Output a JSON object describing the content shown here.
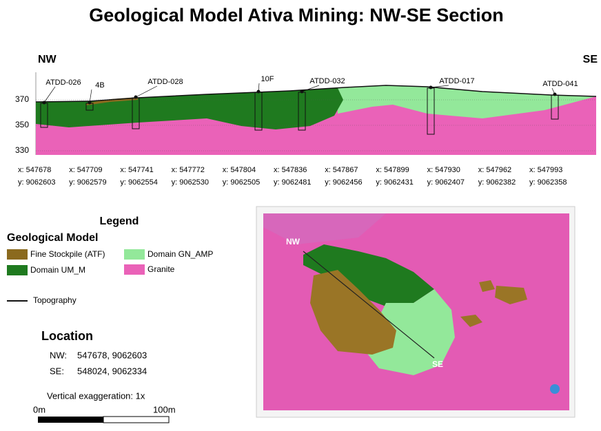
{
  "title": "Geological Model  Ativa  Mining: NW-SE Section",
  "section": {
    "left_label": "NW",
    "right_label": "SE",
    "elevation_ticks": [
      370,
      350,
      330
    ],
    "drill_holes": [
      "ATDD-026",
      "4B",
      "ATDD-028",
      "10F",
      "ATDD-032",
      "ATDD-017",
      "ATDD-041"
    ],
    "coordinates": [
      {
        "x": "x: 547678",
        "y": "y: 9062603"
      },
      {
        "x": "x: 547709",
        "y": "y: 9062579"
      },
      {
        "x": "x: 547741",
        "y": "y: 9062554"
      },
      {
        "x": "x: 547772",
        "y": "y: 9062530"
      },
      {
        "x": "x: 547804",
        "y": "y: 9062505"
      },
      {
        "x": "x: 547836",
        "y": "y: 9062481"
      },
      {
        "x": "x: 547867",
        "y": "y: 9062456"
      },
      {
        "x": "x: 547899",
        "y": "y: 9062431"
      },
      {
        "x": "x: 547930",
        "y": "y: 9062407"
      },
      {
        "x": "x: 547962",
        "y": "y: 9062382"
      },
      {
        "x": "x: 547993",
        "y": "y: 9062358"
      }
    ]
  },
  "legend": {
    "title": "Legend",
    "subtitle": "Geological Model",
    "items": [
      {
        "label": "Fine Stockpile (ATF)",
        "color": "#8b6a1e"
      },
      {
        "label": "Domain UM_M",
        "color": "#1f7a1f"
      },
      {
        "label": "Domain GN_AMP",
        "color": "#93e89a"
      },
      {
        "label": "Granite",
        "color": "#ea62b8"
      }
    ],
    "line_item": "Topography"
  },
  "location": {
    "title": "Location",
    "rows": [
      {
        "label": "NW:",
        "value": "547678, 9062603"
      },
      {
        "label": "SE:",
        "value": "548024, 9062334"
      }
    ]
  },
  "vertical_exaggeration": "Vertical exaggeration: 1x",
  "scale_bar": {
    "start": "0m",
    "end": "100m"
  },
  "map": {
    "nw_label": "NW",
    "se_label": "SE"
  }
}
